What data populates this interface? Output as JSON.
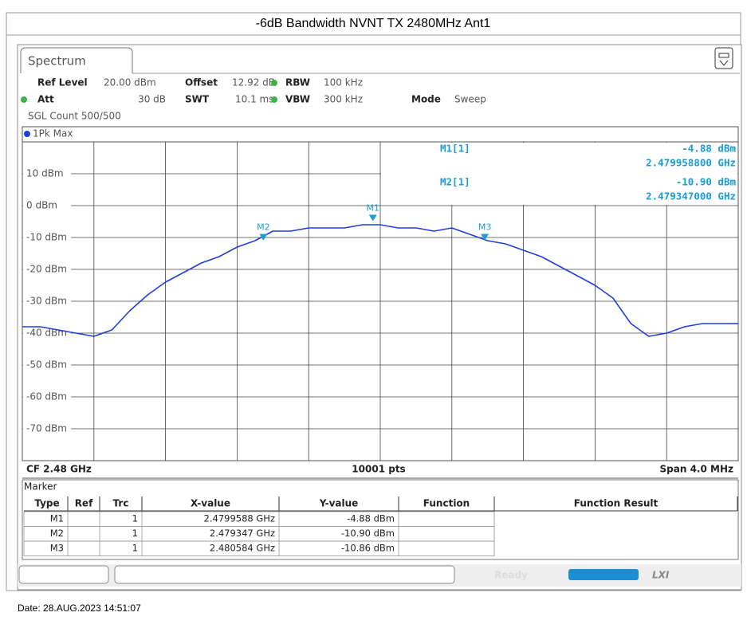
{
  "title": "-6dB Bandwidth NVNT TX 2480MHz Ant1",
  "tab": "Spectrum",
  "settings": {
    "ref_level": {
      "label": "Ref Level",
      "value": "20.00 dBm"
    },
    "offset": {
      "label": "Offset",
      "value": "12.92 dB"
    },
    "rbw": {
      "label": "RBW",
      "value": "100 kHz"
    },
    "att": {
      "label": "Att",
      "value": "30 dB"
    },
    "swt": {
      "label": "SWT",
      "value": "10.1 ms"
    },
    "vbw": {
      "label": "VBW",
      "value": "300 kHz"
    },
    "mode": {
      "label": "Mode",
      "value": "Sweep"
    },
    "sgl_count": "SGL Count 500/500"
  },
  "trace_label": "1Pk Max",
  "chart_data": {
    "type": "line",
    "color": "#1f3fd8",
    "xlim": [
      2.478,
      2.482
    ],
    "ylim": [
      -80,
      20
    ],
    "yticks": [
      {
        "value": 10,
        "label": "10 dBm"
      },
      {
        "value": 0,
        "label": "0 dBm"
      },
      {
        "value": -10,
        "label": "-10 dBm"
      },
      {
        "value": -20,
        "label": "-20 dBm"
      },
      {
        "value": -30,
        "label": "-30 dBm"
      },
      {
        "value": -40,
        "label": "-40 dBm"
      },
      {
        "value": -50,
        "label": "-50 dBm"
      },
      {
        "value": -60,
        "label": "-60 dBm"
      },
      {
        "value": -70,
        "label": "-70 dBm"
      }
    ],
    "grid": true,
    "values": [
      -38,
      -38,
      -39,
      -40,
      -41,
      -39,
      -33,
      -28,
      -24,
      -21,
      -18,
      -16,
      -13,
      -11,
      -8,
      -8,
      -7,
      -7,
      -7,
      -6,
      -6,
      -7,
      -7,
      -8,
      -7,
      -9,
      -11,
      -12,
      -14,
      -16,
      -19,
      -22,
      -25,
      -29,
      -37,
      -41,
      -40,
      -38,
      -37,
      -37,
      -37
    ],
    "markers": [
      {
        "name": "M1",
        "x": 2.4799588,
        "y": -4.88
      },
      {
        "name": "M2",
        "x": 2.479347,
        "y": -10.9
      },
      {
        "name": "M3",
        "x": 2.480584,
        "y": -10.86
      }
    ]
  },
  "marker_readout": [
    {
      "name": "M1[1]",
      "y": "-4.88 dBm",
      "x": "2.479958800 GHz"
    },
    {
      "name": "M2[1]",
      "y": "-10.90 dBm",
      "x": "2.479347000 GHz"
    }
  ],
  "footer": {
    "cf": "CF 2.48 GHz",
    "points": "10001 pts",
    "span": "Span 4.0 MHz"
  },
  "marker_table": {
    "title": "Marker",
    "columns": [
      "Type",
      "Ref",
      "Trc",
      "X-value",
      "Y-value",
      "Function",
      "Function Result"
    ],
    "rows": [
      {
        "type": "M1",
        "trc": "1",
        "x": "2.4799588 GHz",
        "y": "-4.88 dBm"
      },
      {
        "type": "M2",
        "trc": "1",
        "x": "2.479347 GHz",
        "y": "-10.90 dBm"
      },
      {
        "type": "M3",
        "trc": "1",
        "x": "2.480584 GHz",
        "y": "-10.86 dBm"
      }
    ]
  },
  "status": "Ready",
  "date": "Date: 28.AUG.2023 14:51:07"
}
